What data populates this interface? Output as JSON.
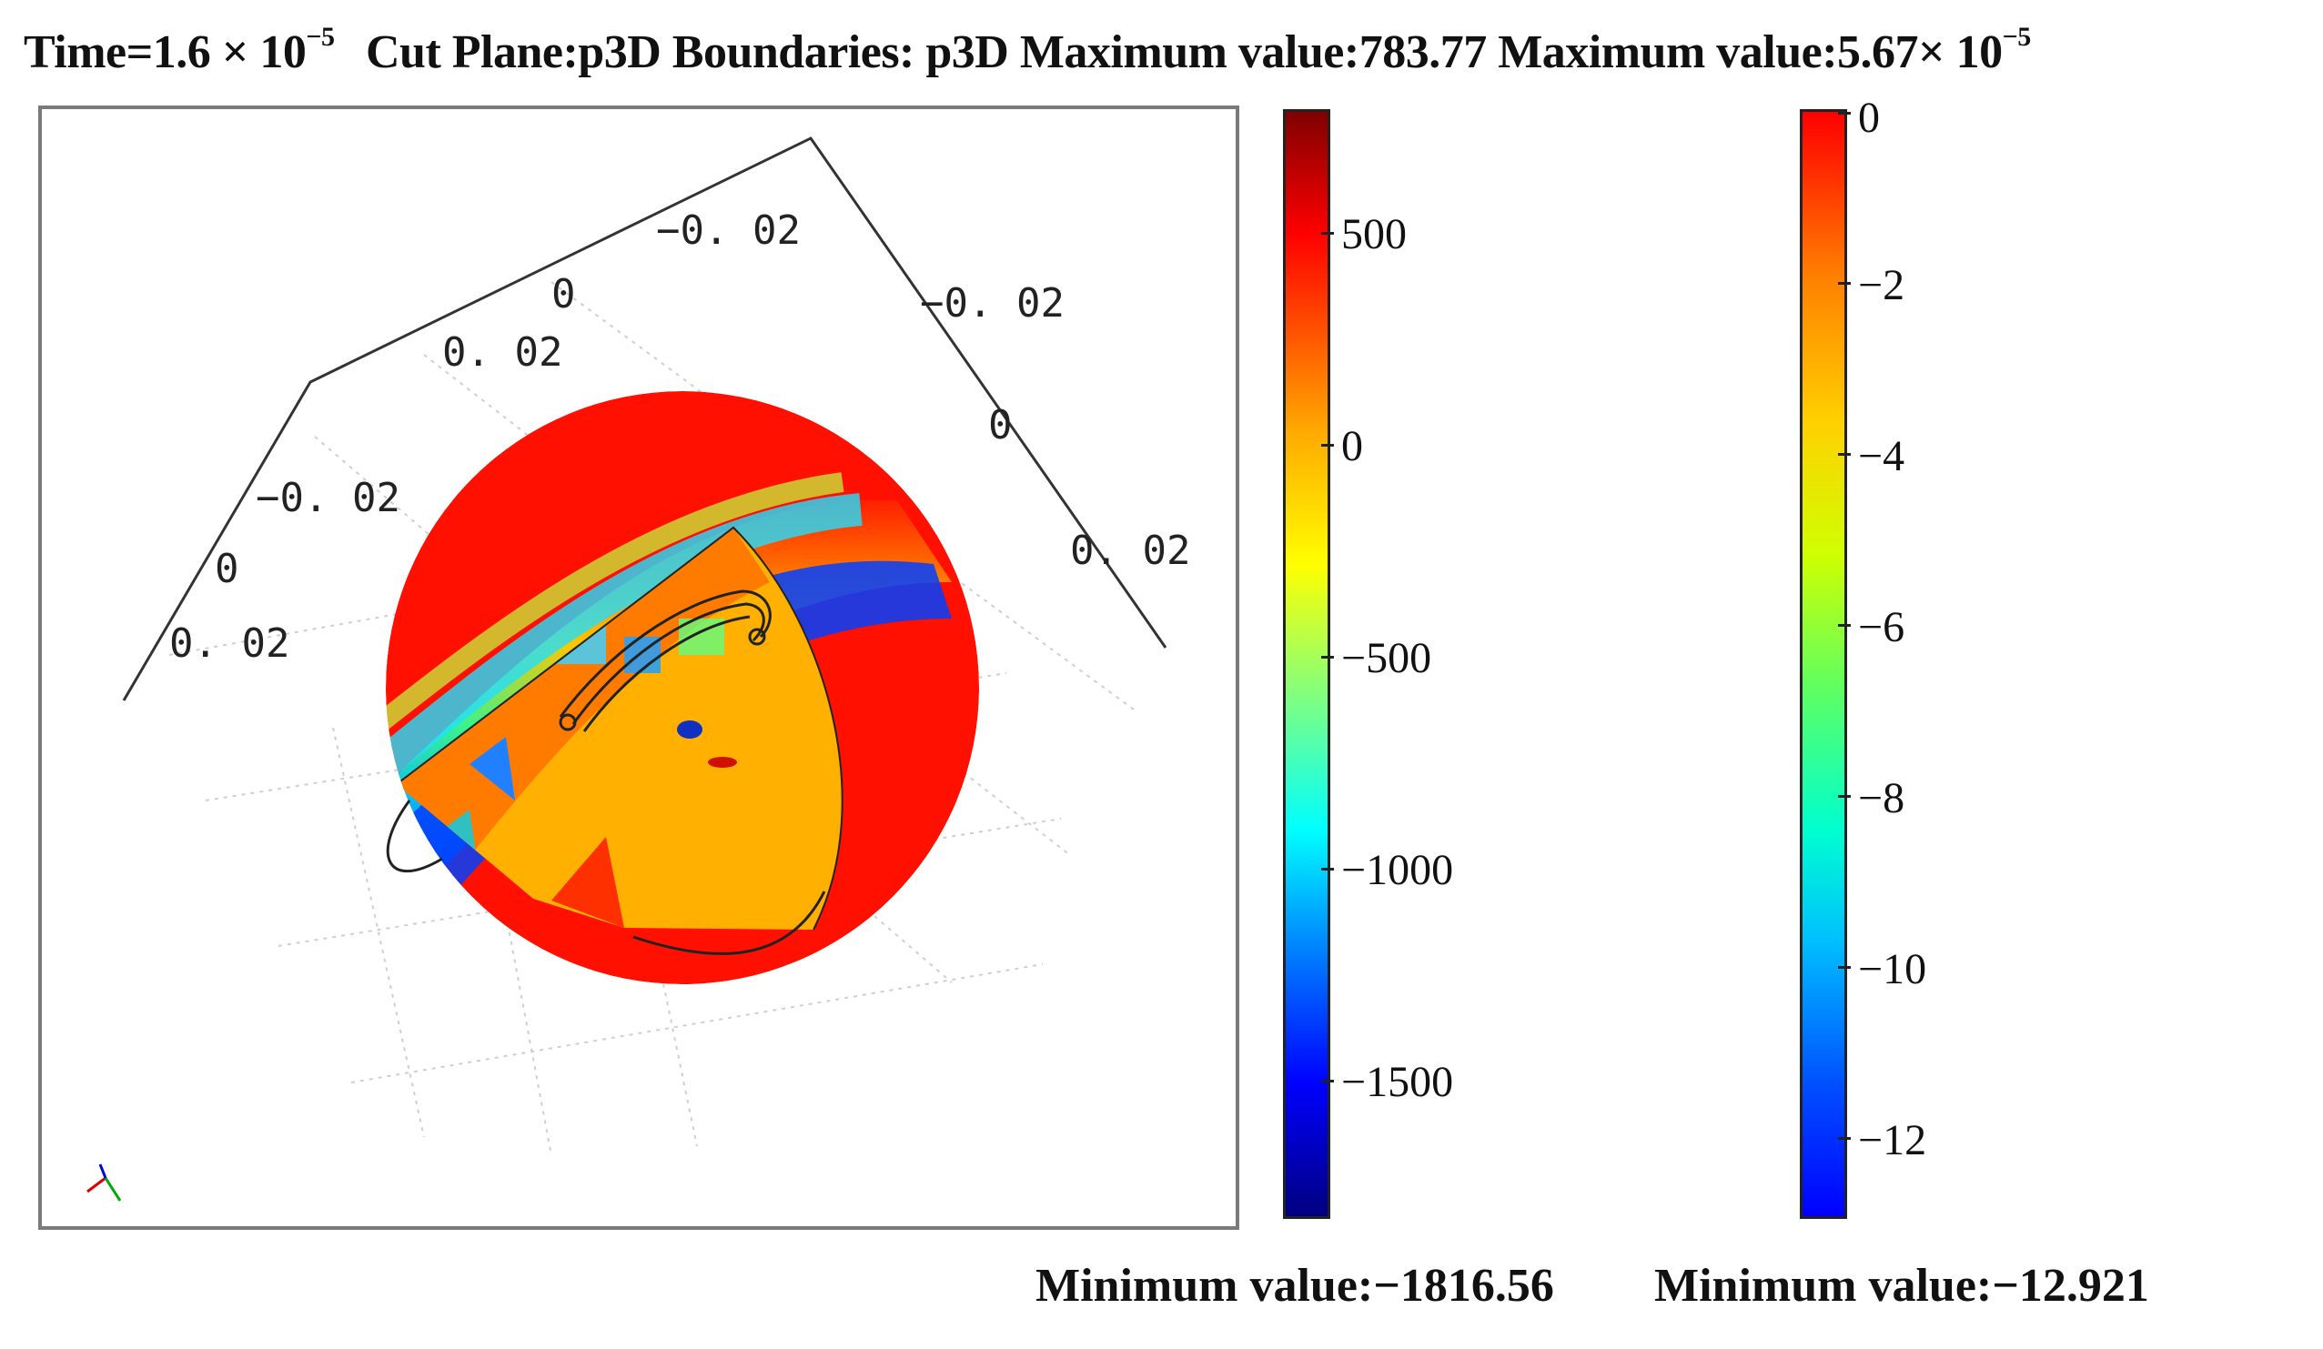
{
  "header": {
    "time_prefix": "Time=1.6 × 10",
    "time_exp": "−5",
    "cut_plane": "Cut Plane:p3D",
    "boundaries": "Boundaries: p3D",
    "max1": "Maximum value:783.77",
    "max2_prefix": "Maximum value:5.67× 10",
    "max2_exp": "−5"
  },
  "axes_labels": {
    "top_a": "−0. 02",
    "top_b": "0",
    "top_c": "0. 02",
    "right_a": "−0. 02",
    "right_b": "0",
    "right_c": "0. 02",
    "left_a": "−0. 02",
    "left_b": "0",
    "left_c": "0. 02"
  },
  "colorbar1": {
    "ticks": [
      "500",
      "0",
      "−500",
      "−1000",
      "−1500"
    ],
    "min_label": "Minimum value:−1816.56",
    "colors": [
      "#00007f",
      "#0000ff",
      "#00ffff",
      "#ffff00",
      "#ff0000",
      "#800000"
    ]
  },
  "colorbar2": {
    "ticks": [
      "0",
      "−2",
      "−4",
      "−6",
      "−8",
      "−10",
      "−12"
    ],
    "min_label": "Minimum value:−12.921",
    "colors": [
      "#0000ff",
      "#00ffff",
      "#ffff00",
      "#ff8000",
      "#ff0000"
    ]
  },
  "triad_icon": "coordinate-triad-icon"
}
